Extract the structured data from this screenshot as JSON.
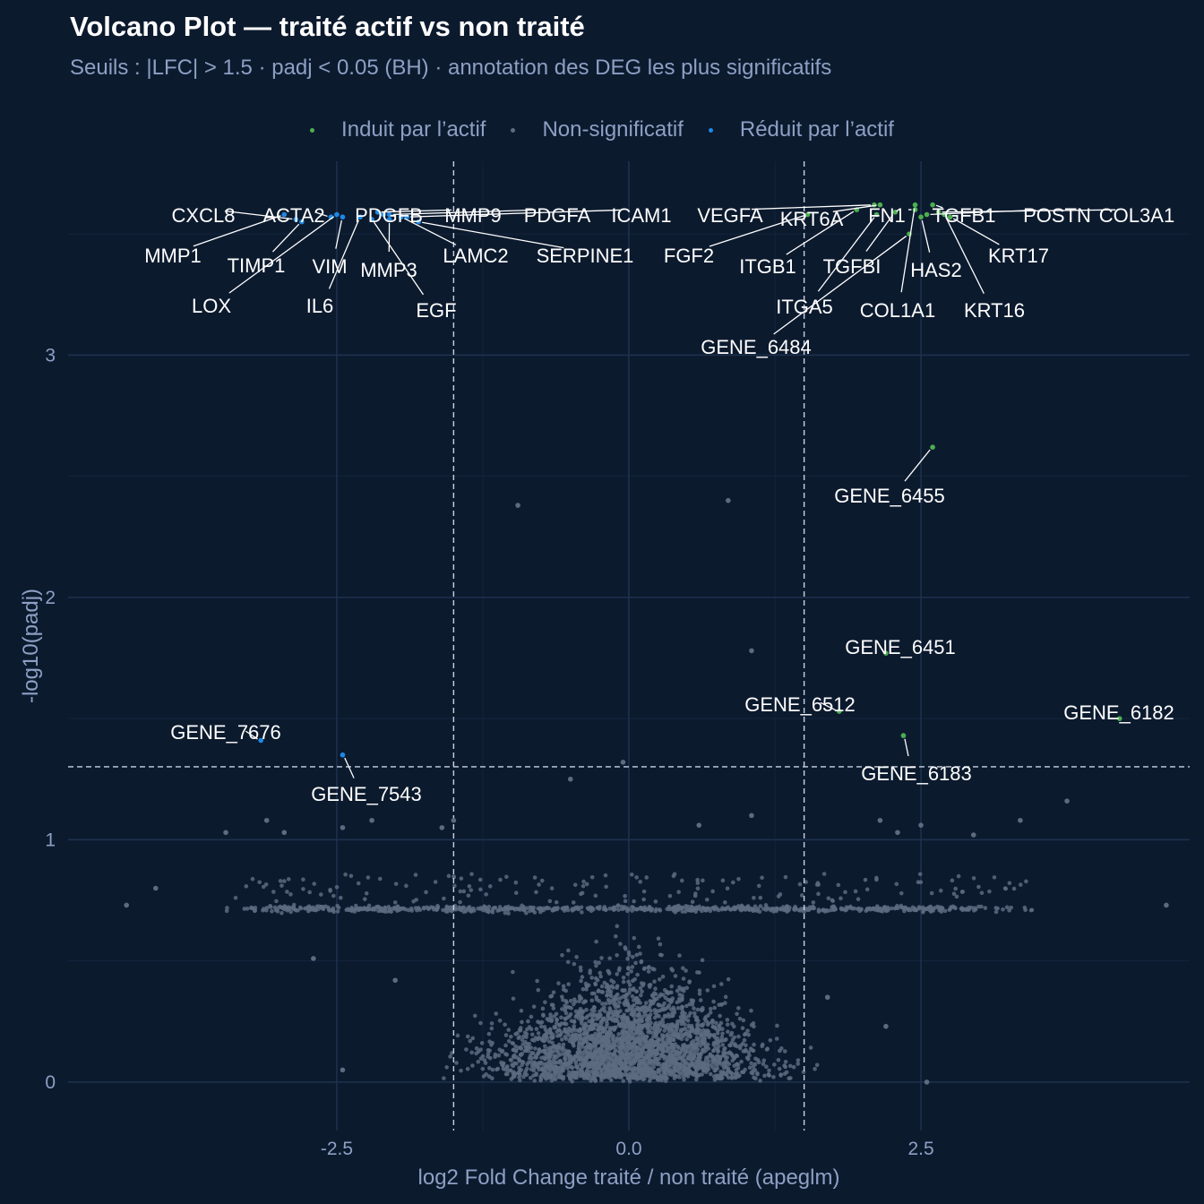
{
  "chart_data": {
    "type": "scatter",
    "title": "Volcano Plot — traité actif vs non traité",
    "subtitle": "Seuils : |LFC| > 1.5 · padj < 0.05 (BH) · annotation des DEG les plus significatifs",
    "xlabel": "log2 Fold Change traité / non traité (apeglm)",
    "ylabel": "-log10(padj)",
    "xlim": [
      -4.8,
      4.8
    ],
    "ylim": [
      -0.2,
      3.8
    ],
    "x_ticks": [
      -2.5,
      0.0,
      2.5
    ],
    "x_tick_labels": [
      "-2.5",
      "0.0",
      "2.5"
    ],
    "y_ticks": [
      0,
      1,
      2,
      3
    ],
    "y_tick_labels": [
      "0",
      "1",
      "2",
      "3"
    ],
    "grid": true,
    "legend_position": "top",
    "thresholds": {
      "lfc": 1.5,
      "neg_log10_padj": 1.301
    },
    "colors": {
      "up": "#4caf50",
      "ns": "#5d6b80",
      "down": "#1e88e5",
      "background": "#0c1a2e",
      "grid": "#1e324f",
      "threshold_line": "#c8d2e6"
    },
    "series": [
      {
        "name": "Induit par l’actif",
        "key": "up",
        "points": [
          {
            "gene": "VEGFA",
            "x": 2.1,
            "y": 3.62
          },
          {
            "gene": "KRT6A",
            "x": 2.15,
            "y": 3.62
          },
          {
            "gene": "FN1",
            "x": 2.45,
            "y": 3.6
          },
          {
            "gene": "TGFB1",
            "x": 2.6,
            "y": 3.62
          },
          {
            "gene": "POSTN",
            "x": 2.55,
            "y": 3.58
          },
          {
            "gene": "COL3A1",
            "x": 2.65,
            "y": 3.59
          },
          {
            "gene": "KRT17",
            "x": 2.75,
            "y": 3.57
          },
          {
            "gene": "FGF2",
            "x": 1.53,
            "y": 3.58
          },
          {
            "gene": "ITGB1",
            "x": 1.95,
            "y": 3.6
          },
          {
            "gene": "TGFBI",
            "x": 2.28,
            "y": 3.59
          },
          {
            "gene": "HAS2",
            "x": 2.5,
            "y": 3.57
          },
          {
            "gene": "KRT16",
            "x": 2.7,
            "y": 3.58
          },
          {
            "gene": "ITGA5",
            "x": 2.12,
            "y": 3.58
          },
          {
            "gene": "COL1A1",
            "x": 2.45,
            "y": 3.62
          },
          {
            "gene": "GENE_6484",
            "x": 2.4,
            "y": 3.5
          },
          {
            "gene": "GENE_6455",
            "x": 2.6,
            "y": 2.62
          },
          {
            "gene": "GENE_6451",
            "x": 2.2,
            "y": 1.77
          },
          {
            "gene": "GENE_6512",
            "x": 1.8,
            "y": 1.53
          },
          {
            "gene": "GENE_6183",
            "x": 2.35,
            "y": 1.43
          },
          {
            "gene": "GENE_6182",
            "x": 4.2,
            "y": 1.5
          }
        ]
      },
      {
        "name": "Non-significatif",
        "key": "ns",
        "points": [
          {
            "x": -0.95,
            "y": 2.38
          },
          {
            "x": 0.85,
            "y": 2.4
          },
          {
            "x": 1.05,
            "y": 1.78
          },
          {
            "x": -0.5,
            "y": 1.25
          },
          {
            "x": -0.05,
            "y": 1.32
          },
          {
            "x": -4.3,
            "y": 0.73
          },
          {
            "x": -4.05,
            "y": 0.8
          },
          {
            "x": -3.45,
            "y": 1.03
          },
          {
            "x": -3.1,
            "y": 1.08
          },
          {
            "x": -2.95,
            "y": 1.03
          },
          {
            "x": -2.45,
            "y": 1.05
          },
          {
            "x": -2.2,
            "y": 1.08
          },
          {
            "x": -1.6,
            "y": 1.05
          },
          {
            "x": -1.5,
            "y": 1.08
          },
          {
            "x": 0.6,
            "y": 1.06
          },
          {
            "x": 1.05,
            "y": 1.1
          },
          {
            "x": 2.15,
            "y": 1.08
          },
          {
            "x": 2.3,
            "y": 1.03
          },
          {
            "x": 2.5,
            "y": 1.06
          },
          {
            "x": 3.35,
            "y": 1.08
          },
          {
            "x": 3.75,
            "y": 1.16
          },
          {
            "x": 4.6,
            "y": 0.73
          },
          {
            "x": 2.95,
            "y": 1.02
          },
          {
            "x": -2.7,
            "y": 0.51
          },
          {
            "x": -2.0,
            "y": 0.42
          },
          {
            "x": 1.7,
            "y": 0.35
          },
          {
            "x": 2.2,
            "y": 0.23
          },
          {
            "x": -2.45,
            "y": 0.05
          },
          {
            "x": 2.55,
            "y": 0.0
          }
        ]
      },
      {
        "name": "Réduit par l’actif",
        "key": "down",
        "points": [
          {
            "gene": "CXCL8",
            "x": -2.85,
            "y": 3.56
          },
          {
            "gene": "ACTA2",
            "x": -2.55,
            "y": 3.57
          },
          {
            "gene": "PDGFB",
            "x": -2.1,
            "y": 3.58
          },
          {
            "gene": "MMP9",
            "x": -2.15,
            "y": 3.59
          },
          {
            "gene": "PDGFA",
            "x": -2.05,
            "y": 3.58
          },
          {
            "gene": "ICAM1",
            "x": -1.9,
            "y": 3.57
          },
          {
            "gene": "MMP1",
            "x": -2.95,
            "y": 3.58
          },
          {
            "gene": "TIMP1",
            "x": -2.8,
            "y": 3.55
          },
          {
            "gene": "VIM",
            "x": -2.45,
            "y": 3.57
          },
          {
            "gene": "MMP3",
            "x": -2.05,
            "y": 3.56
          },
          {
            "gene": "LAMC2",
            "x": -1.95,
            "y": 3.57
          },
          {
            "gene": "SERPINE1",
            "x": -1.8,
            "y": 3.55
          },
          {
            "gene": "LOX",
            "x": -2.5,
            "y": 3.58
          },
          {
            "gene": "IL6",
            "x": -2.3,
            "y": 3.57
          },
          {
            "gene": "EGF",
            "x": -2.2,
            "y": 3.56
          },
          {
            "gene": "GENE_7676",
            "x": -3.15,
            "y": 1.41
          },
          {
            "gene": "GENE_7543",
            "x": -2.45,
            "y": 1.35
          }
        ]
      }
    ],
    "annotations": [
      {
        "text": "CXCL8"
      },
      {
        "text": "ACTA2"
      },
      {
        "text": "PDGFB"
      },
      {
        "text": "MMP9"
      },
      {
        "text": "PDGFA"
      },
      {
        "text": "ICAM1"
      },
      {
        "text": "MMP1"
      },
      {
        "text": "TIMP1"
      },
      {
        "text": "VIM"
      },
      {
        "text": "MMP3"
      },
      {
        "text": "LAMC2"
      },
      {
        "text": "SERPINE1"
      },
      {
        "text": "LOX"
      },
      {
        "text": "IL6"
      },
      {
        "text": "EGF"
      },
      {
        "text": "VEGFA"
      },
      {
        "text": "KRT6A"
      },
      {
        "text": "FN1"
      },
      {
        "text": "TGFB1"
      },
      {
        "text": "POSTN"
      },
      {
        "text": "COL3A1"
      },
      {
        "text": "FGF2"
      },
      {
        "text": "ITGB1"
      },
      {
        "text": "TGFBI"
      },
      {
        "text": "HAS2"
      },
      {
        "text": "KRT17"
      },
      {
        "text": "ITGA5"
      },
      {
        "text": "COL1A1"
      },
      {
        "text": "KRT16"
      },
      {
        "text": "GENE_6484"
      },
      {
        "text": "GENE_6455"
      },
      {
        "text": "GENE_6451"
      },
      {
        "text": "GENE_6512"
      },
      {
        "text": "GENE_6183"
      },
      {
        "text": "GENE_6182"
      },
      {
        "text": "GENE_7676"
      },
      {
        "text": "GENE_7543"
      }
    ]
  }
}
